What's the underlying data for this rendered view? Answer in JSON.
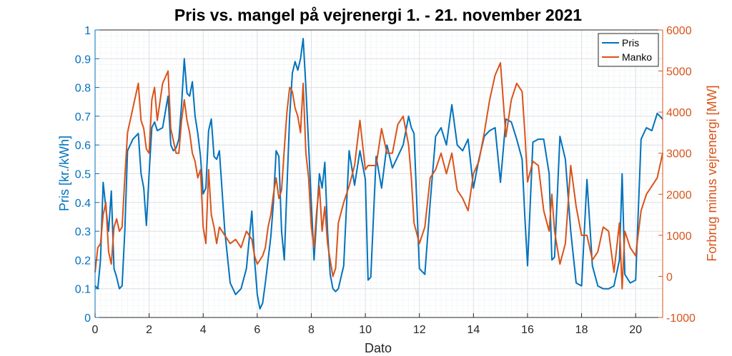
{
  "chart_data": {
    "type": "line",
    "title": "Pris vs. mangel på vejrenergi 1. - 21. november 2021",
    "xlabel": "Dato",
    "ylabel_left": "Pris [kr./kWh]",
    "ylabel_right": "Forbrug minus vejrenergi [MW]",
    "xlim": [
      0,
      21
    ],
    "ylim_left": [
      0,
      1
    ],
    "ylim_right": [
      -1000,
      6000
    ],
    "x_ticks": [
      "0",
      "2",
      "4",
      "6",
      "8",
      "10",
      "12",
      "14",
      "16",
      "18",
      "20"
    ],
    "y_ticks_left": [
      "0",
      "0.1",
      "0.2",
      "0.3",
      "0.4",
      "0.5",
      "0.6",
      "0.7",
      "0.8",
      "0.9",
      "1"
    ],
    "y_ticks_right": [
      "-1000",
      "0",
      "1000",
      "2000",
      "3000",
      "4000",
      "5000",
      "6000"
    ],
    "grid": true,
    "legend_position": "top-right",
    "colors": {
      "pris": "#0072BD",
      "manko": "#D95319"
    },
    "series": [
      {
        "name": "Pris",
        "axis": "left",
        "x": [
          0,
          0.1,
          0.2,
          0.3,
          0.4,
          0.5,
          0.6,
          0.7,
          0.8,
          0.9,
          1.0,
          1.1,
          1.2,
          1.4,
          1.6,
          1.7,
          1.8,
          1.9,
          2.0,
          2.1,
          2.2,
          2.3,
          2.5,
          2.7,
          2.8,
          2.9,
          3.0,
          3.1,
          3.2,
          3.3,
          3.4,
          3.5,
          3.6,
          3.7,
          3.8,
          3.9,
          4.0,
          4.1,
          4.2,
          4.3,
          4.4,
          4.5,
          4.6,
          4.8,
          5.0,
          5.2,
          5.4,
          5.6,
          5.8,
          5.9,
          6.0,
          6.1,
          6.2,
          6.3,
          6.4,
          6.5,
          6.6,
          6.7,
          6.8,
          6.9,
          7.0,
          7.1,
          7.2,
          7.3,
          7.4,
          7.5,
          7.6,
          7.7,
          7.8,
          7.9,
          8.0,
          8.1,
          8.2,
          8.3,
          8.4,
          8.5,
          8.6,
          8.7,
          8.8,
          8.9,
          9.0,
          9.2,
          9.4,
          9.6,
          9.8,
          10.0,
          10.1,
          10.2,
          10.4,
          10.6,
          10.8,
          11.0,
          11.2,
          11.4,
          11.6,
          11.7,
          11.8,
          12.0,
          12.2,
          12.4,
          12.6,
          12.8,
          13.0,
          13.2,
          13.4,
          13.6,
          13.8,
          14.0,
          14.2,
          14.4,
          14.6,
          14.8,
          15.0,
          15.2,
          15.4,
          15.6,
          15.8,
          15.9,
          16.0,
          16.2,
          16.4,
          16.6,
          16.8,
          16.9,
          17.0,
          17.2,
          17.4,
          17.6,
          17.8,
          18.0,
          18.2,
          18.4,
          18.6,
          18.8,
          19.0,
          19.2,
          19.4,
          19.5,
          19.6,
          19.8,
          20.0,
          20.2,
          20.4,
          20.6,
          20.8,
          21.0
        ],
        "values": [
          0.11,
          0.1,
          0.2,
          0.47,
          0.38,
          0.3,
          0.44,
          0.17,
          0.14,
          0.1,
          0.11,
          0.3,
          0.58,
          0.62,
          0.64,
          0.5,
          0.45,
          0.32,
          0.5,
          0.66,
          0.68,
          0.65,
          0.66,
          0.77,
          0.6,
          0.58,
          0.59,
          0.62,
          0.74,
          0.9,
          0.78,
          0.77,
          0.82,
          0.7,
          0.64,
          0.56,
          0.43,
          0.45,
          0.65,
          0.69,
          0.56,
          0.55,
          0.58,
          0.3,
          0.12,
          0.08,
          0.1,
          0.17,
          0.37,
          0.2,
          0.08,
          0.03,
          0.05,
          0.12,
          0.2,
          0.28,
          0.4,
          0.58,
          0.56,
          0.3,
          0.2,
          0.45,
          0.7,
          0.85,
          0.89,
          0.86,
          0.9,
          0.97,
          0.8,
          0.6,
          0.4,
          0.2,
          0.35,
          0.5,
          0.45,
          0.54,
          0.3,
          0.15,
          0.1,
          0.09,
          0.1,
          0.18,
          0.58,
          0.46,
          0.58,
          0.48,
          0.13,
          0.14,
          0.56,
          0.45,
          0.6,
          0.52,
          0.56,
          0.6,
          0.7,
          0.66,
          0.64,
          0.17,
          0.15,
          0.4,
          0.63,
          0.66,
          0.6,
          0.74,
          0.6,
          0.58,
          0.62,
          0.45,
          0.55,
          0.63,
          0.65,
          0.66,
          0.47,
          0.69,
          0.68,
          0.62,
          0.55,
          0.35,
          0.18,
          0.61,
          0.62,
          0.62,
          0.5,
          0.2,
          0.21,
          0.63,
          0.55,
          0.3,
          0.12,
          0.11,
          0.48,
          0.18,
          0.11,
          0.1,
          0.1,
          0.11,
          0.2,
          0.5,
          0.15,
          0.12,
          0.13,
          0.62,
          0.66,
          0.65,
          0.71,
          0.69
        ]
      },
      {
        "name": "Manko",
        "axis": "right",
        "x": [
          0,
          0.1,
          0.2,
          0.3,
          0.4,
          0.5,
          0.6,
          0.7,
          0.8,
          0.9,
          1.0,
          1.1,
          1.2,
          1.4,
          1.6,
          1.7,
          1.8,
          1.9,
          2.0,
          2.1,
          2.2,
          2.3,
          2.5,
          2.7,
          2.8,
          2.9,
          3.0,
          3.1,
          3.2,
          3.3,
          3.4,
          3.5,
          3.6,
          3.7,
          3.8,
          3.9,
          4.0,
          4.1,
          4.2,
          4.3,
          4.4,
          4.5,
          4.6,
          4.8,
          5.0,
          5.2,
          5.4,
          5.6,
          5.8,
          5.9,
          6.0,
          6.1,
          6.2,
          6.3,
          6.4,
          6.5,
          6.6,
          6.7,
          6.8,
          6.9,
          7.0,
          7.1,
          7.2,
          7.3,
          7.4,
          7.5,
          7.6,
          7.7,
          7.8,
          7.9,
          8.0,
          8.1,
          8.2,
          8.3,
          8.4,
          8.5,
          8.6,
          8.7,
          8.8,
          8.9,
          9.0,
          9.2,
          9.4,
          9.6,
          9.8,
          10.0,
          10.1,
          10.2,
          10.4,
          10.6,
          10.8,
          11.0,
          11.2,
          11.4,
          11.6,
          11.7,
          11.8,
          12.0,
          12.2,
          12.4,
          12.6,
          12.8,
          13.0,
          13.2,
          13.4,
          13.6,
          13.8,
          14.0,
          14.2,
          14.4,
          14.6,
          14.8,
          15.0,
          15.2,
          15.4,
          15.6,
          15.8,
          15.9,
          16.0,
          16.2,
          16.4,
          16.6,
          16.8,
          16.9,
          17.0,
          17.2,
          17.4,
          17.6,
          17.8,
          18.0,
          18.2,
          18.4,
          18.6,
          18.8,
          19.0,
          19.2,
          19.4,
          19.5,
          19.6,
          19.8,
          20.0,
          20.2,
          20.4,
          20.6,
          20.8,
          21.0
        ],
        "values": [
          100,
          700,
          800,
          1500,
          1800,
          600,
          300,
          1200,
          1400,
          1100,
          1200,
          2400,
          3500,
          4100,
          4700,
          3800,
          3600,
          3100,
          3000,
          4300,
          4600,
          3800,
          4700,
          5000,
          3600,
          3300,
          3000,
          3000,
          3800,
          4300,
          3800,
          3500,
          3000,
          2800,
          2400,
          2600,
          1200,
          800,
          2600,
          1500,
          1200,
          800,
          1200,
          1000,
          800,
          900,
          700,
          1100,
          900,
          500,
          300,
          400,
          500,
          700,
          1200,
          1500,
          2000,
          2400,
          1900,
          2100,
          3100,
          4000,
          4600,
          4500,
          4100,
          3900,
          3500,
          4700,
          3000,
          2400,
          1200,
          700,
          1600,
          2200,
          1100,
          1700,
          800,
          400,
          0,
          200,
          1300,
          1800,
          2200,
          2700,
          3800,
          2600,
          2700,
          2700,
          2700,
          3600,
          3000,
          3000,
          3700,
          3900,
          3200,
          2400,
          1300,
          800,
          1200,
          2400,
          2600,
          3000,
          2500,
          3000,
          2100,
          1900,
          1600,
          2500,
          2800,
          3500,
          4300,
          4900,
          5200,
          3400,
          4300,
          4700,
          4500,
          3500,
          2300,
          2800,
          2700,
          1600,
          1100,
          2000,
          1100,
          300,
          800,
          2700,
          1700,
          1000,
          1000,
          400,
          600,
          1200,
          1100,
          100,
          1300,
          -300,
          1100,
          700,
          500,
          1600,
          2000,
          2200,
          2400,
          3000
        ]
      }
    ]
  }
}
